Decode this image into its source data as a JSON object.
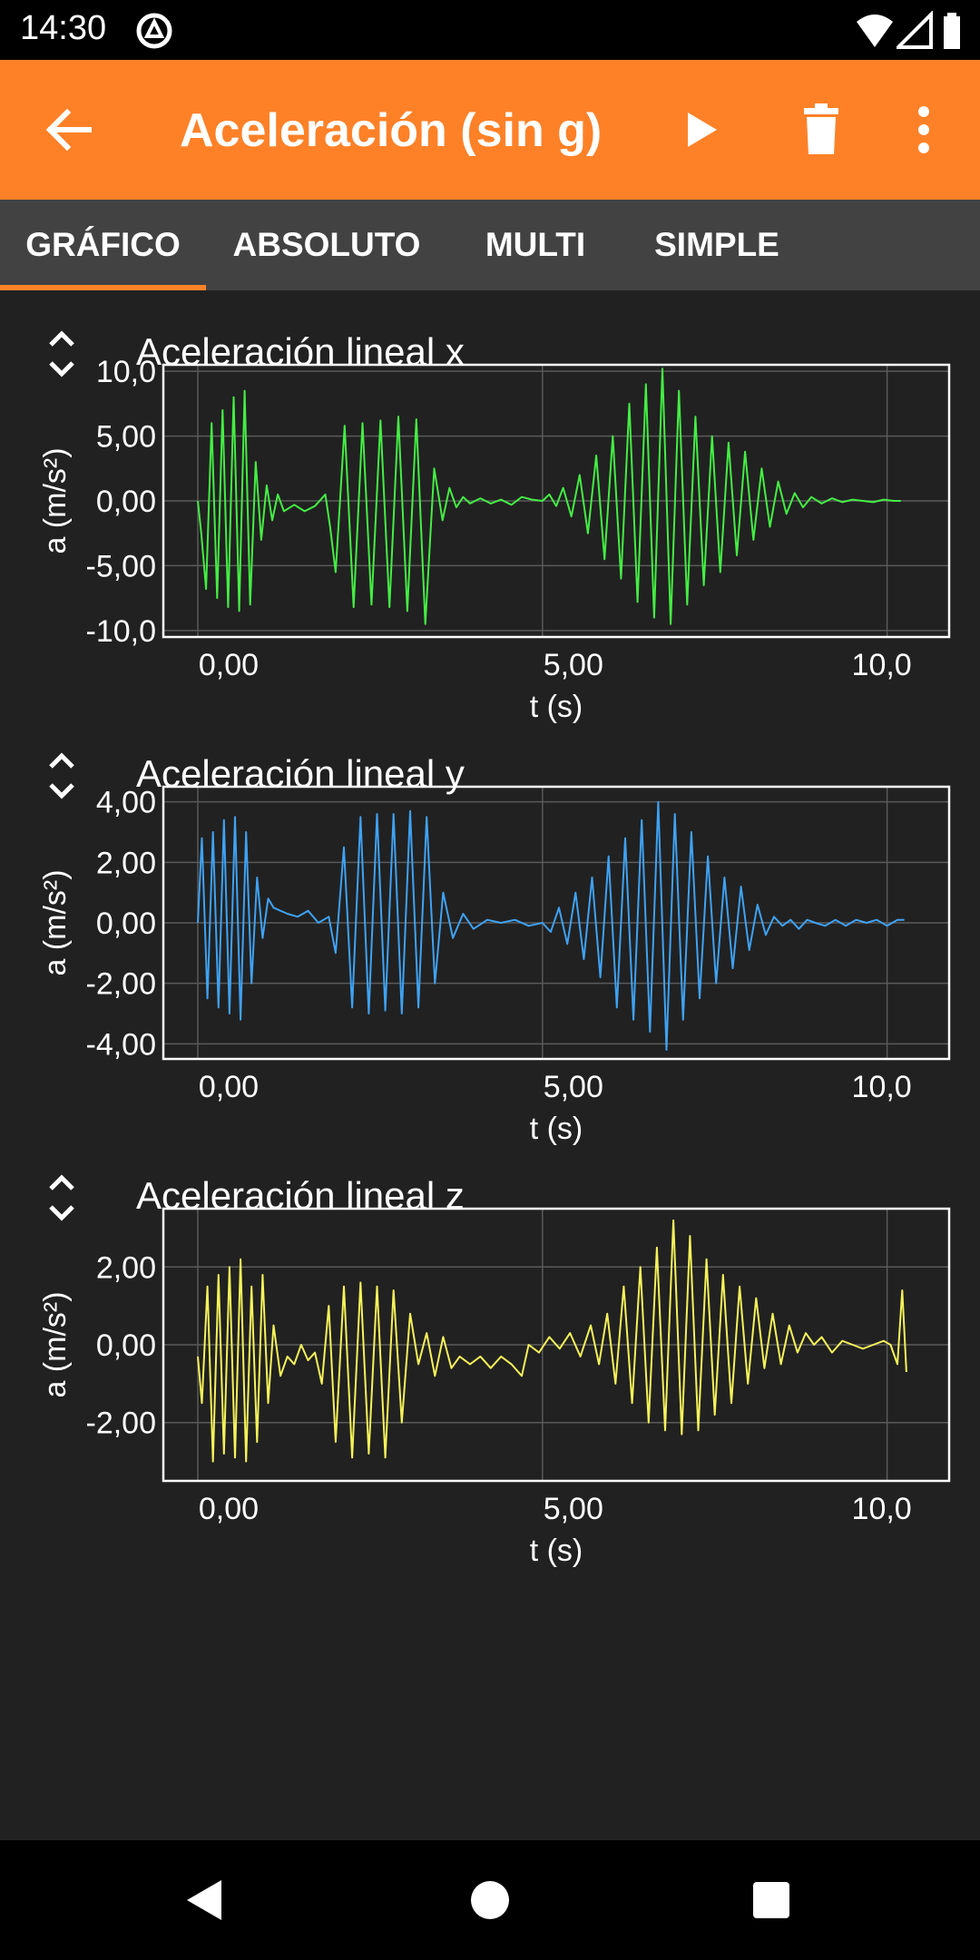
{
  "status_bar": {
    "time": "14:30"
  },
  "app_bar": {
    "title": "Aceleración (sin g)"
  },
  "tabs": [
    {
      "label": "GRÁFICO",
      "active": true
    },
    {
      "label": "ABSOLUTO",
      "active": false
    },
    {
      "label": "MULTI",
      "active": false
    },
    {
      "label": "SIMPLE",
      "active": false
    }
  ],
  "icons": {
    "back": "arrow-back-icon",
    "play": "play-icon",
    "delete": "trash-icon",
    "more": "more-vert-icon",
    "collapse": "unfold-icon",
    "nav_back": "nav-back-icon",
    "nav_home": "nav-home-icon",
    "nav_recents": "nav-recents-icon"
  },
  "colors": {
    "accent": "#fe8128",
    "background": "#212121",
    "tab_bar": "#424242",
    "series_x": "#44ee44",
    "series_y": "#3fa2f3",
    "series_z": "#f5f25a"
  },
  "chart_data": [
    {
      "type": "line",
      "title": "Aceleración lineal x",
      "xlabel": "t (s)",
      "ylabel": "a (m/s²)",
      "xlim": [
        -0.5,
        10.9
      ],
      "ylim": [
        -10.5,
        10.5
      ],
      "xticks": [
        0,
        5,
        10
      ],
      "xtick_labels": [
        "0,00",
        "5,00",
        "10,0"
      ],
      "yticks": [
        10,
        5,
        0,
        -5,
        -10
      ],
      "ytick_labels": [
        "10,0",
        "5,00",
        "0,00",
        "-5,00",
        "-10,0"
      ],
      "grid": true,
      "color": "#44ee44",
      "series": [
        {
          "x": [
            0.0,
            0.05,
            0.12,
            0.2,
            0.28,
            0.36,
            0.44,
            0.52,
            0.6,
            0.68,
            0.76,
            0.84,
            0.92,
            1.0,
            1.08,
            1.16,
            1.25,
            1.4,
            1.55,
            1.7,
            1.85,
            1.92,
            2.0,
            2.13,
            2.26,
            2.39,
            2.52,
            2.65,
            2.78,
            2.91,
            3.04,
            3.17,
            3.3,
            3.43,
            3.55,
            3.65,
            3.75,
            3.85,
            3.95,
            4.1,
            4.25,
            4.4,
            4.55,
            4.7,
            4.85,
            5.0,
            5.1,
            5.2,
            5.3,
            5.42,
            5.54,
            5.66,
            5.78,
            5.9,
            6.02,
            6.14,
            6.26,
            6.38,
            6.5,
            6.62,
            6.74,
            6.86,
            6.98,
            7.1,
            7.22,
            7.34,
            7.46,
            7.58,
            7.7,
            7.82,
            7.94,
            8.06,
            8.18,
            8.3,
            8.42,
            8.54,
            8.66,
            8.78,
            8.9,
            9.05,
            9.2,
            9.35,
            9.5,
            9.65,
            9.8,
            9.95,
            10.1,
            10.2
          ],
          "y": [
            0.0,
            -2.5,
            -6.8,
            6.0,
            -7.5,
            7.0,
            -8.2,
            8.0,
            -8.5,
            8.5,
            -8.0,
            3.0,
            -3.0,
            1.2,
            -1.5,
            0.5,
            -0.8,
            -0.3,
            -0.8,
            -0.4,
            0.5,
            -2.0,
            -5.5,
            5.8,
            -8.2,
            6.0,
            -8.0,
            6.2,
            -8.2,
            6.5,
            -8.5,
            6.3,
            -9.5,
            2.5,
            -1.5,
            1.0,
            -0.5,
            0.3,
            -0.2,
            0.2,
            -0.2,
            0.1,
            -0.3,
            0.3,
            0.1,
            0.0,
            0.5,
            -0.4,
            1.0,
            -1.2,
            2.0,
            -2.5,
            3.5,
            -4.5,
            5.0,
            -6.0,
            7.5,
            -7.8,
            9.0,
            -9.0,
            10.2,
            -9.5,
            8.5,
            -8.0,
            6.5,
            -6.5,
            5.0,
            -5.5,
            4.5,
            -4.2,
            3.8,
            -3.0,
            2.5,
            -2.0,
            1.5,
            -1.0,
            0.6,
            -0.5,
            0.3,
            -0.2,
            0.2,
            -0.1,
            0.1,
            0.0,
            -0.1,
            0.1,
            0.0,
            0.0
          ]
        }
      ]
    },
    {
      "type": "line",
      "title": "Aceleración lineal y",
      "xlabel": "t (s)",
      "ylabel": "a (m/s²)",
      "xlim": [
        -0.5,
        10.9
      ],
      "ylim": [
        -4.5,
        4.5
      ],
      "xticks": [
        0,
        5,
        10
      ],
      "xtick_labels": [
        "0,00",
        "5,00",
        "10,0"
      ],
      "yticks": [
        4,
        2,
        0,
        -2,
        -4
      ],
      "ytick_labels": [
        "4,00",
        "2,00",
        "0,00",
        "-2,00",
        "-4,00"
      ],
      "grid": true,
      "color": "#3fa2f3",
      "series": [
        {
          "x": [
            0.0,
            0.06,
            0.14,
            0.22,
            0.3,
            0.38,
            0.46,
            0.54,
            0.62,
            0.7,
            0.78,
            0.86,
            0.94,
            1.02,
            1.1,
            1.2,
            1.3,
            1.45,
            1.6,
            1.75,
            1.9,
            2.0,
            2.12,
            2.24,
            2.36,
            2.48,
            2.6,
            2.72,
            2.84,
            2.96,
            3.08,
            3.2,
            3.32,
            3.44,
            3.56,
            3.7,
            3.85,
            4.0,
            4.2,
            4.4,
            4.6,
            4.8,
            5.0,
            5.12,
            5.24,
            5.36,
            5.48,
            5.6,
            5.72,
            5.84,
            5.96,
            6.08,
            6.2,
            6.32,
            6.44,
            6.56,
            6.68,
            6.8,
            6.92,
            7.04,
            7.16,
            7.28,
            7.4,
            7.52,
            7.64,
            7.76,
            7.88,
            8.0,
            8.12,
            8.24,
            8.36,
            8.48,
            8.6,
            8.72,
            8.84,
            8.96,
            9.1,
            9.25,
            9.4,
            9.55,
            9.7,
            9.85,
            10.0,
            10.15,
            10.25
          ],
          "y": [
            0.0,
            2.8,
            -2.5,
            3.0,
            -2.8,
            3.4,
            -3.0,
            3.5,
            -3.2,
            3.0,
            -2.0,
            1.5,
            -0.5,
            0.8,
            0.5,
            0.4,
            0.3,
            0.2,
            0.4,
            0.0,
            0.2,
            -1.0,
            2.5,
            -2.8,
            3.5,
            -3.0,
            3.6,
            -2.9,
            3.6,
            -3.0,
            3.7,
            -2.8,
            3.5,
            -2.0,
            1.0,
            -0.5,
            0.3,
            -0.2,
            0.1,
            0.0,
            0.1,
            -0.1,
            0.0,
            -0.3,
            0.5,
            -0.7,
            1.0,
            -1.2,
            1.5,
            -1.8,
            2.2,
            -2.8,
            2.8,
            -3.2,
            3.4,
            -3.6,
            4.0,
            -4.2,
            3.6,
            -3.2,
            3.0,
            -2.5,
            2.2,
            -2.0,
            1.5,
            -1.5,
            1.2,
            -0.9,
            0.6,
            -0.4,
            0.2,
            -0.1,
            0.1,
            -0.2,
            0.1,
            0.0,
            -0.1,
            0.1,
            -0.1,
            0.1,
            0.0,
            0.1,
            -0.1,
            0.1,
            0.1
          ]
        }
      ]
    },
    {
      "type": "line",
      "title": "Aceleración lineal z",
      "xlabel": "t (s)",
      "ylabel": "a (m/s²)",
      "xlim": [
        -0.5,
        10.9
      ],
      "ylim": [
        -3.5,
        3.5
      ],
      "xticks": [
        0,
        5,
        10
      ],
      "xtick_labels": [
        "0,00",
        "5,00",
        "10,0"
      ],
      "yticks": [
        2,
        0,
        -2
      ],
      "ytick_labels": [
        "2,00",
        "0,00",
        "-2,00"
      ],
      "grid": true,
      "color": "#f5f25a",
      "series": [
        {
          "x": [
            0.0,
            0.06,
            0.14,
            0.22,
            0.3,
            0.38,
            0.46,
            0.54,
            0.62,
            0.7,
            0.78,
            0.86,
            0.94,
            1.02,
            1.1,
            1.2,
            1.3,
            1.4,
            1.5,
            1.6,
            1.7,
            1.8,
            1.9,
            2.0,
            2.12,
            2.24,
            2.36,
            2.48,
            2.6,
            2.72,
            2.84,
            2.96,
            3.08,
            3.2,
            3.32,
            3.44,
            3.56,
            3.68,
            3.8,
            3.95,
            4.1,
            4.25,
            4.4,
            4.55,
            4.7,
            4.8,
            4.95,
            5.1,
            5.25,
            5.4,
            5.55,
            5.7,
            5.82,
            5.94,
            6.06,
            6.18,
            6.3,
            6.42,
            6.54,
            6.66,
            6.78,
            6.9,
            7.02,
            7.14,
            7.26,
            7.38,
            7.5,
            7.62,
            7.74,
            7.86,
            7.98,
            8.1,
            8.22,
            8.34,
            8.46,
            8.58,
            8.7,
            8.82,
            8.94,
            9.05,
            9.2,
            9.35,
            9.5,
            9.65,
            9.8,
            9.95,
            10.05,
            10.15,
            10.22,
            10.28
          ],
          "y": [
            -0.3,
            -1.5,
            1.5,
            -3.0,
            1.8,
            -2.8,
            2.0,
            -2.9,
            2.2,
            -3.0,
            1.5,
            -2.5,
            1.8,
            -1.5,
            0.5,
            -0.8,
            -0.3,
            -0.5,
            0.0,
            -0.4,
            -0.2,
            -1.0,
            1.0,
            -2.5,
            1.5,
            -2.9,
            1.6,
            -2.8,
            1.5,
            -2.9,
            1.4,
            -2.0,
            0.8,
            -0.5,
            0.3,
            -0.8,
            0.2,
            -0.6,
            -0.3,
            -0.5,
            -0.3,
            -0.6,
            -0.3,
            -0.5,
            -0.8,
            0.0,
            -0.2,
            0.2,
            -0.1,
            0.3,
            -0.3,
            0.5,
            -0.5,
            0.8,
            -1.0,
            1.5,
            -1.5,
            2.0,
            -2.0,
            2.5,
            -2.2,
            3.2,
            -2.3,
            2.8,
            -2.2,
            2.2,
            -1.8,
            1.8,
            -1.5,
            1.5,
            -1.0,
            1.2,
            -0.6,
            0.8,
            -0.5,
            0.5,
            -0.2,
            0.3,
            0.0,
            0.2,
            -0.2,
            0.1,
            0.0,
            -0.1,
            0.0,
            0.1,
            0.0,
            -0.5,
            1.4,
            -0.7
          ]
        }
      ]
    }
  ]
}
